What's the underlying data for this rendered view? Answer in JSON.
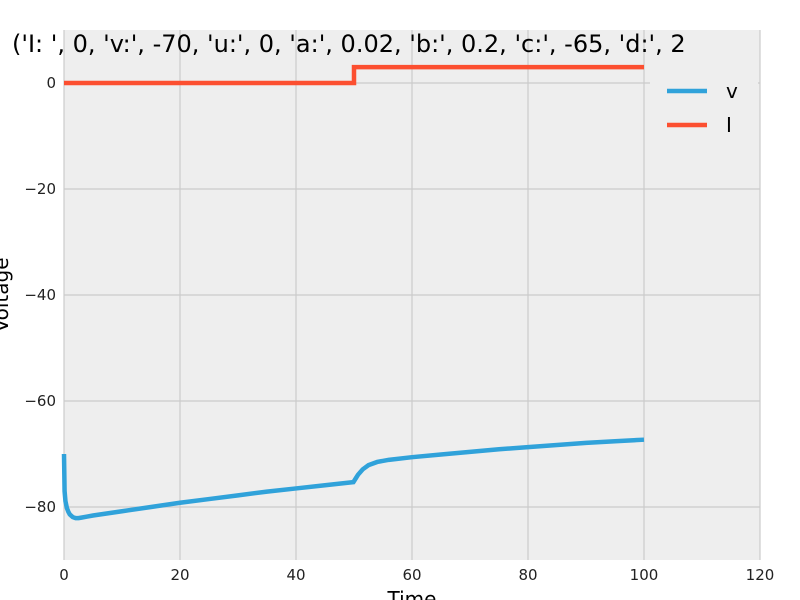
{
  "chart_data": {
    "type": "line",
    "title": "('I: ', 0, 'v:', -70, 'u:', 0, 'a:', 0.02, 'b:', 0.2, 'c:', -65, 'd:', 2",
    "xlabel": "Time",
    "ylabel": "Voltage",
    "xlim": [
      0,
      120
    ],
    "ylim": [
      -90,
      10
    ],
    "xticks": [
      0,
      20,
      40,
      60,
      80,
      100,
      120
    ],
    "yticks": [
      0,
      -20,
      -40,
      -60,
      -80
    ],
    "ytick_labels": [
      "0",
      "−20",
      "−40",
      "−60",
      "−80"
    ],
    "grid": true,
    "legend_position": "top-right",
    "background": "#eeeeee",
    "series": [
      {
        "name": "v",
        "color": "#30a2da",
        "x": [
          0.0,
          0.1,
          0.25,
          0.5,
          0.75,
          1.0,
          1.5,
          2.0,
          2.5,
          3.0,
          4.0,
          5.0,
          7.5,
          10,
          15,
          20,
          25,
          30,
          35,
          40,
          45,
          49.9,
          50.3,
          50.7,
          51.5,
          52.5,
          54,
          56,
          60,
          65,
          70,
          75,
          80,
          85,
          90,
          95,
          100
        ],
        "y": [
          -70.0,
          -77.0,
          -78.9,
          -80.2,
          -80.9,
          -81.4,
          -81.9,
          -82.1,
          -82.1,
          -82.0,
          -81.8,
          -81.6,
          -81.2,
          -80.8,
          -80.0,
          -79.2,
          -78.5,
          -77.8,
          -77.1,
          -76.5,
          -75.9,
          -75.3,
          -74.6,
          -73.9,
          -72.9,
          -72.1,
          -71.5,
          -71.1,
          -70.6,
          -70.1,
          -69.6,
          -69.1,
          -68.7,
          -68.3,
          -67.9,
          -67.6,
          -67.3
        ]
      },
      {
        "name": "I",
        "color": "#fc4f30",
        "x": [
          0,
          50,
          50,
          100
        ],
        "y": [
          0,
          0,
          3,
          3
        ]
      }
    ]
  }
}
